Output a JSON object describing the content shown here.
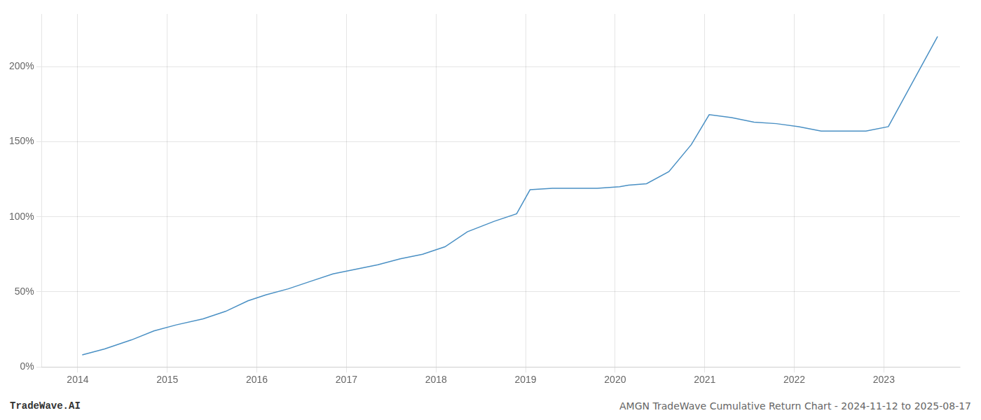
{
  "chart_data": {
    "type": "line",
    "x": [
      2014.05,
      2014.3,
      2014.6,
      2014.85,
      2015.1,
      2015.4,
      2015.65,
      2015.9,
      2016.1,
      2016.35,
      2016.6,
      2016.85,
      2017.1,
      2017.35,
      2017.6,
      2017.85,
      2018.1,
      2018.35,
      2018.65,
      2018.9,
      2019.05,
      2019.3,
      2019.55,
      2019.8,
      2020.05,
      2020.15,
      2020.35,
      2020.6,
      2020.85,
      2021.05,
      2021.3,
      2021.55,
      2021.8,
      2022.05,
      2022.3,
      2022.55,
      2022.8,
      2023.05,
      2023.6
    ],
    "values": [
      8,
      12,
      18,
      24,
      28,
      32,
      37,
      44,
      48,
      52,
      57,
      62,
      65,
      68,
      72,
      75,
      80,
      90,
      97,
      102,
      118,
      119,
      119,
      119,
      120,
      121,
      122,
      130,
      148,
      168,
      166,
      163,
      162,
      160,
      157,
      157,
      157,
      160,
      220
    ],
    "color": "#4a90c4",
    "xlim": [
      2013.6,
      2023.85
    ],
    "xticks": [
      2014,
      2015,
      2016,
      2017,
      2018,
      2019,
      2020,
      2021,
      2022,
      2023
    ],
    "ylim": [
      0,
      235
    ],
    "yticks": [
      {
        "value": 0,
        "label": "0%"
      },
      {
        "value": 50,
        "label": "50%"
      },
      {
        "value": 100,
        "label": "100%"
      },
      {
        "value": 150,
        "label": "150%"
      },
      {
        "value": 200,
        "label": "200%"
      }
    ],
    "grid": true,
    "annotations": [
      "TradeWave.AI",
      "AMGN TradeWave Cumulative Return Chart - 2024-11-12 to 2025-08-17"
    ]
  }
}
